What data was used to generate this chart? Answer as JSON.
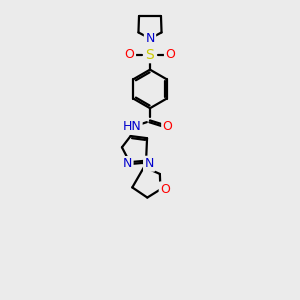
{
  "bg_color": "#ebebeb",
  "atom_colors": {
    "C": "#000000",
    "N": "#0000cc",
    "O": "#ff0000",
    "S": "#cccc00",
    "H": "#5a8a8a"
  },
  "bond_color": "#000000",
  "bond_width": 1.6,
  "figsize": [
    3.0,
    3.0
  ],
  "dpi": 100,
  "xlim": [
    0,
    10
  ],
  "ylim": [
    0,
    14
  ]
}
